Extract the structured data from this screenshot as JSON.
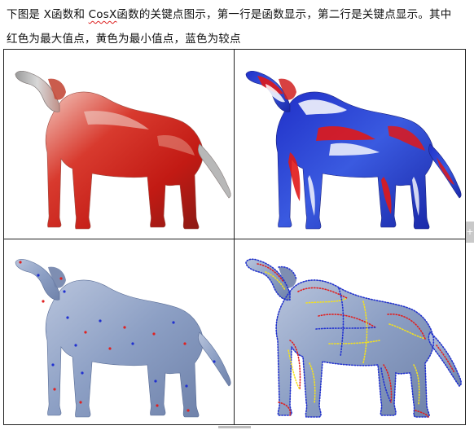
{
  "doc": {
    "line1_prefix": "下图是 X函数和 ",
    "line1_underlined": "CosX",
    "line1_suffix": "函数的关键点图示，第一行是函数显示，第二行是关键点显示。其中",
    "line2": "红色为最大值点，黄色为最小值点，蓝色为较点"
  },
  "side_tab": {
    "glyph": "+"
  },
  "colors": {
    "max_points": "#e02020",
    "min_points": "#f2e020",
    "other_points": "#2030d0",
    "dog_grey": "#8e9fbf"
  }
}
